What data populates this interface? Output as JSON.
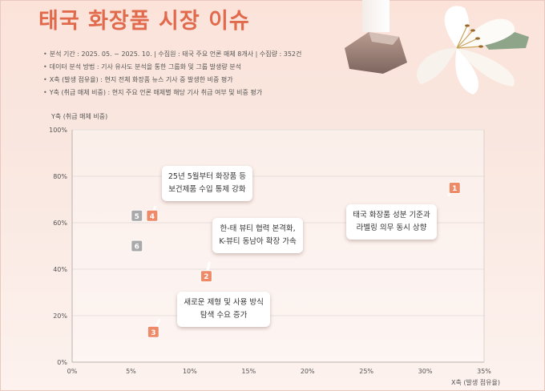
{
  "page": {
    "title": "태국 화장품 시장 이슈",
    "info": [
      "분석 기간 : 2025. 05. ~ 2025. 10.   |   수집원 : 태국 주요 언론 매체 8개사   |   수집량 : 352건",
      "데이터 분석 방법 : 기사 유사도 분석을 통한 그룹화 및 그룹 발생량 분석",
      "X축 (발생 점유율) : 현지 전체 화장품 뉴스 기사 중 발생한 비중 평가",
      "Y축 (취급 매체 비중) : 현지 주요 언론 매체별 해당 기사 취급 여부 및 비중 평가"
    ]
  },
  "colors": {
    "title": "#e16a4c",
    "marker_orange": "#ee8a68",
    "marker_gray": "#a9a9a9",
    "gridline": "#e6e0de"
  },
  "chart_data": {
    "type": "scatter",
    "xlabel": "X축 (발생 점유율)",
    "ylabel": "Y축 (취급 매체 비중)",
    "xlim": [
      0,
      35
    ],
    "ylim": [
      0,
      100
    ],
    "x_ticks": [
      0,
      5,
      10,
      15,
      20,
      25,
      30,
      35
    ],
    "y_ticks": [
      0,
      20,
      40,
      60,
      80,
      100
    ],
    "x_tick_labels": [
      "0%",
      "5%",
      "10%",
      "15%",
      "20%",
      "25%",
      "30%",
      "35%"
    ],
    "y_tick_labels": [
      "0%",
      "20%",
      "40%",
      "60%",
      "80%",
      "100%"
    ],
    "grid": "horizontal",
    "points": [
      {
        "id": "1",
        "x": 32.5,
        "y": 75,
        "color": "orange"
      },
      {
        "id": "2",
        "x": 11.4,
        "y": 37,
        "color": "orange"
      },
      {
        "id": "3",
        "x": 6.9,
        "y": 13,
        "color": "orange"
      },
      {
        "id": "4",
        "x": 6.8,
        "y": 63,
        "color": "orange"
      },
      {
        "id": "5",
        "x": 5.5,
        "y": 63,
        "color": "gray"
      },
      {
        "id": "6",
        "x": 5.5,
        "y": 50,
        "color": "gray"
      }
    ],
    "annotations": [
      {
        "point": "1",
        "lines": [
          "태국 화장품 성분 기준과",
          "라벨링 의무 동시 상향"
        ]
      },
      {
        "point": "2",
        "lines": [
          "한-태 뷰티 협력 본격화,",
          "K-뷰티 동남아 확장 가속"
        ]
      },
      {
        "point": "3",
        "lines": [
          "새로운 제형 및 사용 방식",
          "탐색 수요 증가"
        ]
      },
      {
        "point": "4",
        "lines": [
          "25년 5월부터 화장품 등",
          "보건제품 수입 통제 강화"
        ]
      }
    ]
  }
}
